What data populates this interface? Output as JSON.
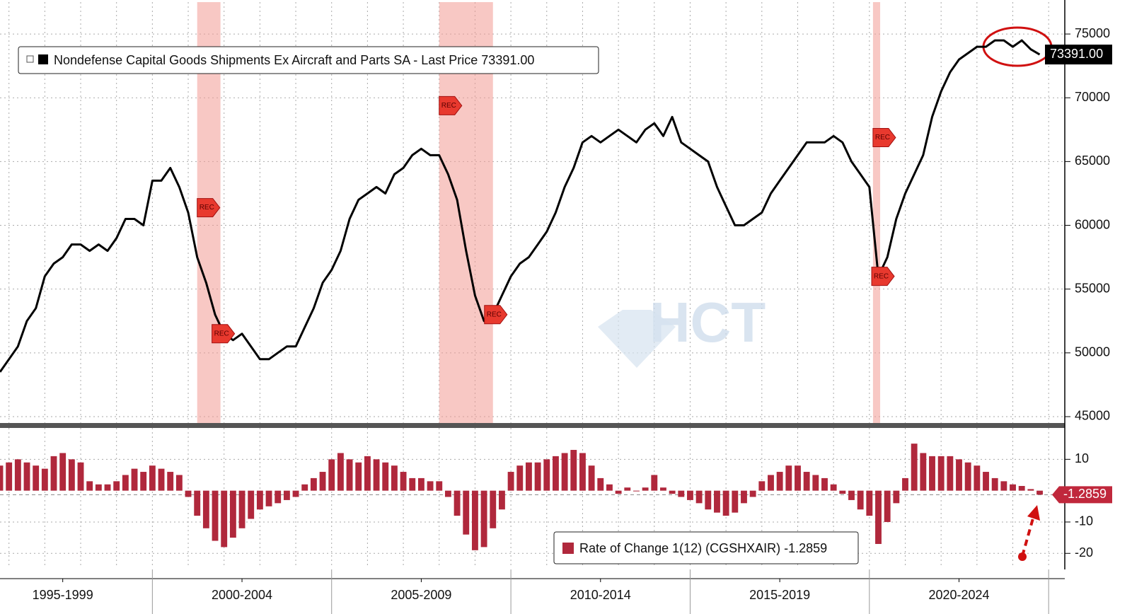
{
  "watermark": "HCT",
  "chart_data": [
    {
      "type": "line",
      "xlim": [
        1995.75,
        2025.45
      ],
      "ylim": [
        44500,
        77500
      ],
      "yticks": [
        45000,
        50000,
        55000,
        60000,
        65000,
        70000,
        75000
      ],
      "grid": true,
      "recession_label": "REC",
      "recessions": [
        [
          2001.25,
          2001.9
        ],
        [
          2008.0,
          2009.5
        ],
        [
          2020.1,
          2020.3
        ]
      ],
      "x": [
        1995.75,
        1996,
        1996.25,
        1996.5,
        1996.75,
        1997,
        1997.25,
        1997.5,
        1997.75,
        1998,
        1998.25,
        1998.5,
        1998.75,
        1999,
        1999.25,
        1999.5,
        1999.75,
        2000,
        2000.25,
        2000.5,
        2000.75,
        2001,
        2001.25,
        2001.5,
        2001.75,
        2002,
        2002.25,
        2002.5,
        2002.75,
        2003,
        2003.25,
        2003.5,
        2003.75,
        2004,
        2004.25,
        2004.5,
        2004.75,
        2005,
        2005.25,
        2005.5,
        2005.75,
        2006,
        2006.25,
        2006.5,
        2006.75,
        2007,
        2007.25,
        2007.5,
        2007.75,
        2008,
        2008.25,
        2008.5,
        2008.75,
        2009,
        2009.25,
        2009.5,
        2009.75,
        2010,
        2010.25,
        2010.5,
        2010.75,
        2011,
        2011.25,
        2011.5,
        2011.75,
        2012,
        2012.25,
        2012.5,
        2012.75,
        2013,
        2013.25,
        2013.5,
        2013.75,
        2014,
        2014.25,
        2014.5,
        2014.75,
        2015,
        2015.25,
        2015.5,
        2015.75,
        2016,
        2016.25,
        2016.5,
        2016.75,
        2017,
        2017.25,
        2017.5,
        2017.75,
        2018,
        2018.25,
        2018.5,
        2018.75,
        2019,
        2019.25,
        2019.5,
        2019.75,
        2020,
        2020.25,
        2020.5,
        2020.75,
        2021,
        2021.25,
        2021.5,
        2021.75,
        2022,
        2022.25,
        2022.5,
        2022.75,
        2023,
        2023.25,
        2023.5,
        2023.75,
        2024,
        2024.25,
        2024.5,
        2024.75
      ],
      "series": [
        {
          "name": "Nondefense Capital Goods Shipments Ex Aircraft and Parts SA - Last Price 73391.00",
          "color": "#000000",
          "last_label": "73391.00",
          "values": [
            48500,
            49500,
            50500,
            52500,
            53500,
            56000,
            57000,
            57500,
            58500,
            58500,
            58000,
            58500,
            58000,
            59000,
            60500,
            60500,
            60000,
            63500,
            63500,
            64500,
            63000,
            61000,
            57500,
            55500,
            53000,
            51500,
            51000,
            51500,
            50500,
            49500,
            49500,
            50000,
            50500,
            50500,
            52000,
            53500,
            55500,
            56500,
            58000,
            60500,
            62000,
            62500,
            63000,
            62500,
            64000,
            64500,
            65500,
            66000,
            65500,
            65500,
            64000,
            62000,
            58000,
            54500,
            52500,
            53000,
            54500,
            56000,
            57000,
            57500,
            58500,
            59500,
            61000,
            63000,
            64500,
            66500,
            67000,
            66500,
            67000,
            67500,
            67000,
            66500,
            67500,
            68000,
            67000,
            68500,
            66500,
            66000,
            65500,
            65000,
            63000,
            61500,
            60000,
            60000,
            60500,
            61000,
            62500,
            63500,
            64500,
            65500,
            66500,
            66500,
            66500,
            67000,
            66500,
            65000,
            64000,
            63000,
            56000,
            57500,
            60500,
            62500,
            64000,
            65500,
            68500,
            70500,
            72000,
            73000,
            73500,
            74000,
            74000,
            74500,
            74500,
            74000,
            74500,
            73800,
            73391
          ]
        }
      ]
    },
    {
      "type": "bar",
      "xlim": [
        1995.75,
        2025.45
      ],
      "ylim": [
        -24,
        20
      ],
      "yticks": [
        -20,
        -10,
        10
      ],
      "grid": true,
      "xticks": [
        {
          "value": 1997.5,
          "label": "1995-1999"
        },
        {
          "value": 2002.5,
          "label": "2000-2004"
        },
        {
          "value": 2007.5,
          "label": "2005-2009"
        },
        {
          "value": 2012.5,
          "label": "2010-2014"
        },
        {
          "value": 2017.5,
          "label": "2015-2019"
        },
        {
          "value": 2022.5,
          "label": "2020-2024"
        }
      ],
      "x": [
        1995.75,
        1996,
        1996.25,
        1996.5,
        1996.75,
        1997,
        1997.25,
        1997.5,
        1997.75,
        1998,
        1998.25,
        1998.5,
        1998.75,
        1999,
        1999.25,
        1999.5,
        1999.75,
        2000,
        2000.25,
        2000.5,
        2000.75,
        2001,
        2001.25,
        2001.5,
        2001.75,
        2002,
        2002.25,
        2002.5,
        2002.75,
        2003,
        2003.25,
        2003.5,
        2003.75,
        2004,
        2004.25,
        2004.5,
        2004.75,
        2005,
        2005.25,
        2005.5,
        2005.75,
        2006,
        2006.25,
        2006.5,
        2006.75,
        2007,
        2007.25,
        2007.5,
        2007.75,
        2008,
        2008.25,
        2008.5,
        2008.75,
        2009,
        2009.25,
        2009.5,
        2009.75,
        2010,
        2010.25,
        2010.5,
        2010.75,
        2011,
        2011.25,
        2011.5,
        2011.75,
        2012,
        2012.25,
        2012.5,
        2012.75,
        2013,
        2013.25,
        2013.5,
        2013.75,
        2014,
        2014.25,
        2014.5,
        2014.75,
        2015,
        2015.25,
        2015.5,
        2015.75,
        2016,
        2016.25,
        2016.5,
        2016.75,
        2017,
        2017.25,
        2017.5,
        2017.75,
        2018,
        2018.25,
        2018.5,
        2018.75,
        2019,
        2019.25,
        2019.5,
        2019.75,
        2020,
        2020.25,
        2020.5,
        2020.75,
        2021,
        2021.25,
        2021.5,
        2021.75,
        2022,
        2022.25,
        2022.5,
        2022.75,
        2023,
        2023.25,
        2023.5,
        2023.75,
        2024,
        2024.25,
        2024.5,
        2024.75
      ],
      "series": [
        {
          "name": "Rate of Change 1(12) (CGSHXAIR) -1.2859",
          "color": "#b0283c",
          "values": [
            8,
            9,
            10,
            9,
            8,
            7,
            11,
            12,
            10,
            9,
            3,
            2,
            2,
            3,
            5,
            7,
            6,
            8,
            7,
            6,
            5,
            -2,
            -8,
            -12,
            -16,
            -18,
            -15,
            -12,
            -9,
            -6,
            -5,
            -4,
            -3,
            -2,
            2,
            4,
            6,
            10,
            12,
            10,
            9,
            11,
            10,
            9,
            8,
            6,
            4,
            4,
            3,
            3,
            -2,
            -8,
            -14,
            -19,
            -18,
            -12,
            -6,
            6,
            8,
            9,
            9,
            10,
            11,
            12,
            13,
            12,
            8,
            4,
            2,
            -1,
            1,
            0,
            1,
            5,
            1,
            -1,
            -2,
            -3,
            -4,
            -6,
            -7,
            -8,
            -7,
            -4,
            -2,
            3,
            5,
            6,
            8,
            8,
            6,
            5,
            4,
            2,
            -1,
            -3,
            -6,
            -8,
            -17,
            -10,
            -4,
            4,
            15,
            12,
            11,
            11,
            11,
            10,
            9,
            8,
            6,
            4,
            3,
            2,
            1.5,
            0.5,
            -1.2859
          ]
        }
      ]
    }
  ]
}
